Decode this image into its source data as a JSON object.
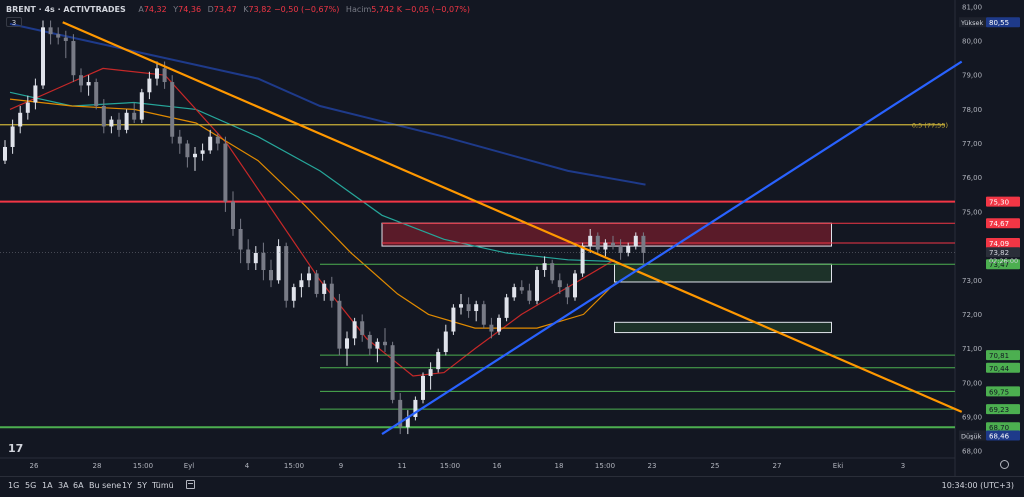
{
  "header": {
    "symbol": "BRENT · 4s · ACTIVTRADES",
    "o_label": "A",
    "o_value": "74,32",
    "h_label": "Y",
    "h_value": "74,36",
    "l_label": "D",
    "l_value": "73,47",
    "c_label": "K",
    "c_value": "73,82",
    "change": "−0,50 (−0,67%)",
    "vol_label": "Hacim",
    "vol_value": "5,742 K",
    "vol_change": "−0,05 (−0,07%)",
    "indicator_count": "3"
  },
  "bottom_bar": {
    "timeframes": [
      "1G",
      "5G",
      "1A",
      "3A",
      "6A",
      "Bu sene",
      "1Y",
      "5Y",
      "Tümü"
    ],
    "clock": "10:34:00 (UTC+3)"
  },
  "colors": {
    "background": "#131722",
    "up": "#e0e3eb",
    "down": "#787b86",
    "red_line": "#f23645",
    "green_line": "#4caf50",
    "orange": "#ff9800",
    "blue": "#2962ff",
    "gold": "#c9b038",
    "navy_ma": "#1e3a8a"
  },
  "chart_data": {
    "type": "candlestick",
    "title": "BRENT · 4s · ACTIVTRADES",
    "ylim": [
      67.8,
      81.2
    ],
    "y_ticks": [
      "81,00",
      "80,00",
      "79,00",
      "78,00",
      "77,00",
      "76,00",
      "75,00",
      "73,00",
      "72,00",
      "71,00",
      "70,00",
      "69,00",
      "68,00"
    ],
    "x_ticks": [
      "26",
      "28",
      "15:00",
      "Eyl",
      "4",
      "15:00",
      "9",
      "11",
      "15:00",
      "16",
      "18",
      "15:00",
      "23",
      "25",
      "27",
      "Eki",
      "3",
      "7"
    ],
    "candles": [
      [
        76.5,
        77.1,
        76.4,
        76.9
      ],
      [
        76.9,
        77.7,
        76.7,
        77.5
      ],
      [
        77.5,
        78.1,
        77.3,
        77.9
      ],
      [
        77.9,
        78.4,
        77.7,
        78.2
      ],
      [
        78.2,
        78.9,
        78.0,
        78.7
      ],
      [
        78.7,
        80.6,
        78.6,
        80.4
      ],
      [
        80.4,
        80.6,
        79.9,
        80.2
      ],
      [
        80.2,
        80.4,
        79.9,
        80.1
      ],
      [
        80.1,
        80.3,
        79.5,
        80.0
      ],
      [
        80.0,
        80.2,
        78.8,
        79.0
      ],
      [
        79.0,
        79.2,
        78.5,
        78.7
      ],
      [
        78.7,
        79.0,
        78.4,
        78.8
      ],
      [
        78.8,
        78.9,
        78.0,
        78.1
      ],
      [
        78.1,
        78.3,
        77.3,
        77.5
      ],
      [
        77.5,
        77.8,
        77.3,
        77.7
      ],
      [
        77.7,
        77.9,
        77.2,
        77.4
      ],
      [
        77.4,
        78.0,
        77.3,
        77.9
      ],
      [
        77.9,
        78.2,
        77.6,
        77.7
      ],
      [
        77.7,
        78.6,
        77.6,
        78.5
      ],
      [
        78.5,
        79.1,
        78.3,
        78.9
      ],
      [
        78.9,
        79.4,
        78.7,
        79.2
      ],
      [
        79.2,
        79.4,
        78.6,
        78.8
      ],
      [
        78.8,
        79.0,
        77.0,
        77.2
      ],
      [
        77.2,
        77.4,
        76.7,
        77.0
      ],
      [
        77.0,
        77.1,
        76.3,
        76.6
      ],
      [
        76.6,
        76.9,
        76.2,
        76.7
      ],
      [
        76.7,
        77.0,
        76.5,
        76.8
      ],
      [
        76.8,
        77.4,
        76.7,
        77.2
      ],
      [
        77.2,
        77.3,
        76.8,
        77.0
      ],
      [
        77.0,
        77.2,
        75.0,
        75.3
      ],
      [
        75.3,
        75.6,
        74.3,
        74.5
      ],
      [
        74.5,
        74.8,
        73.5,
        73.9
      ],
      [
        73.9,
        74.2,
        73.3,
        73.5
      ],
      [
        73.5,
        74.0,
        73.3,
        73.8
      ],
      [
        73.8,
        74.1,
        73.0,
        73.3
      ],
      [
        73.3,
        73.6,
        72.8,
        73.0
      ],
      [
        73.0,
        74.2,
        72.9,
        74.0
      ],
      [
        74.0,
        74.1,
        72.2,
        72.4
      ],
      [
        72.4,
        72.9,
        72.2,
        72.8
      ],
      [
        72.8,
        73.2,
        72.5,
        73.0
      ],
      [
        73.0,
        73.4,
        72.8,
        73.2
      ],
      [
        73.2,
        73.3,
        72.5,
        72.6
      ],
      [
        72.6,
        73.0,
        72.4,
        72.9
      ],
      [
        72.9,
        73.1,
        72.2,
        72.4
      ],
      [
        72.4,
        72.6,
        70.8,
        71.0
      ],
      [
        71.0,
        71.5,
        70.5,
        71.3
      ],
      [
        71.3,
        71.9,
        71.1,
        71.8
      ],
      [
        71.8,
        72.0,
        71.2,
        71.4
      ],
      [
        71.4,
        71.5,
        70.8,
        71.0
      ],
      [
        71.0,
        71.3,
        70.6,
        71.2
      ],
      [
        71.2,
        71.6,
        70.9,
        71.1
      ],
      [
        71.1,
        71.2,
        69.4,
        69.5
      ],
      [
        69.5,
        69.7,
        68.5,
        68.7
      ],
      [
        68.7,
        69.2,
        68.5,
        69.0
      ],
      [
        69.0,
        69.6,
        68.9,
        69.5
      ],
      [
        69.5,
        70.3,
        69.4,
        70.2
      ],
      [
        70.2,
        70.6,
        69.8,
        70.4
      ],
      [
        70.4,
        71.0,
        70.3,
        70.9
      ],
      [
        70.9,
        71.7,
        70.8,
        71.5
      ],
      [
        71.5,
        72.3,
        71.4,
        72.2
      ],
      [
        72.2,
        72.6,
        72.0,
        72.3
      ],
      [
        72.3,
        72.5,
        71.9,
        72.1
      ],
      [
        72.1,
        72.4,
        71.8,
        72.3
      ],
      [
        72.3,
        72.4,
        71.6,
        71.7
      ],
      [
        71.7,
        71.9,
        71.3,
        71.5
      ],
      [
        71.5,
        72.0,
        71.4,
        71.9
      ],
      [
        71.9,
        72.6,
        71.8,
        72.5
      ],
      [
        72.5,
        72.9,
        72.4,
        72.8
      ],
      [
        72.8,
        73.0,
        72.6,
        72.7
      ],
      [
        72.7,
        72.9,
        72.3,
        72.4
      ],
      [
        72.4,
        73.4,
        72.3,
        73.3
      ],
      [
        73.3,
        73.7,
        73.1,
        73.5
      ],
      [
        73.5,
        73.6,
        72.9,
        73.0
      ],
      [
        73.0,
        73.2,
        72.6,
        72.8
      ],
      [
        72.8,
        72.9,
        72.3,
        72.5
      ],
      [
        72.5,
        73.3,
        72.4,
        73.2
      ],
      [
        73.2,
        74.1,
        73.1,
        74.0
      ],
      [
        74.0,
        74.5,
        73.8,
        74.3
      ],
      [
        74.3,
        74.4,
        73.8,
        73.9
      ],
      [
        73.9,
        74.2,
        73.7,
        74.1
      ],
      [
        74.1,
        74.3,
        73.9,
        74.0
      ],
      [
        74.0,
        74.2,
        73.6,
        73.8
      ],
      [
        73.8,
        74.1,
        73.7,
        74.0
      ],
      [
        74.0,
        74.4,
        73.9,
        74.3
      ],
      [
        74.3,
        74.4,
        73.5,
        73.8
      ]
    ],
    "horizontal_levels": [
      {
        "label": "75,30",
        "value": 75.3,
        "color": "red"
      },
      {
        "label": "74,67",
        "value": 74.67,
        "color": "red"
      },
      {
        "label": "74,09",
        "value": 74.09,
        "color": "red"
      },
      {
        "label": "73,47",
        "value": 73.47,
        "color": "green"
      },
      {
        "label": "70,81",
        "value": 70.81,
        "color": "green"
      },
      {
        "label": "70,44",
        "value": 70.44,
        "color": "green"
      },
      {
        "label": "69,75",
        "value": 69.75,
        "color": "green"
      },
      {
        "label": "69,23",
        "value": 69.23,
        "color": "green"
      },
      {
        "label": "68,70",
        "value": 68.7,
        "color": "green"
      }
    ],
    "fib_level": {
      "label": "0,5 (77,55)",
      "value": 77.55
    },
    "high_marker": {
      "label": "Yüksek",
      "value_label": "80,55",
      "value": 80.55
    },
    "low_marker": {
      "label": "Düşük",
      "value_label": "68,46",
      "value": 68.46
    },
    "current_price": {
      "label": "73,82",
      "countdown": "02:26:00",
      "value": 73.82
    },
    "zones": [
      {
        "kind": "resistance",
        "from_x": 12.0,
        "to_x": 26.5,
        "top": 74.67,
        "bottom": 74.0
      },
      {
        "kind": "support",
        "from_x": 19.5,
        "to_x": 26.5,
        "top": 73.47,
        "bottom": 72.95
      },
      {
        "kind": "support",
        "from_x": 19.5,
        "to_x": 26.5,
        "top": 71.77,
        "bottom": 71.47
      }
    ],
    "trendlines": [
      {
        "kind": "downtrend",
        "x0": 1.7,
        "y0": 80.55,
        "x1": 30.7,
        "y1": 69.15
      },
      {
        "kind": "uptrend",
        "x0": 12.0,
        "y0": 68.5,
        "x1": 30.7,
        "y1": 79.4
      }
    ],
    "moving_averages": [
      {
        "color": "navy",
        "points": [
          [
            0,
            80.5
          ],
          [
            3,
            79.9
          ],
          [
            6,
            79.3
          ],
          [
            8,
            78.9
          ],
          [
            10,
            78.1
          ],
          [
            14,
            77.2
          ],
          [
            18,
            76.2
          ],
          [
            20.5,
            75.8
          ]
        ]
      },
      {
        "color": "teal",
        "points": [
          [
            0,
            78.5
          ],
          [
            2,
            78.1
          ],
          [
            4,
            78.2
          ],
          [
            6,
            78.0
          ],
          [
            8,
            77.2
          ],
          [
            10,
            76.2
          ],
          [
            12,
            74.9
          ],
          [
            14,
            74.2
          ],
          [
            16,
            73.8
          ],
          [
            18,
            73.6
          ],
          [
            19.5,
            73.55
          ]
        ]
      },
      {
        "color": "red",
        "points": [
          [
            0,
            78.0
          ],
          [
            2,
            78.8
          ],
          [
            3,
            79.2
          ],
          [
            5,
            79.0
          ],
          [
            7,
            77.0
          ],
          [
            8.5,
            75.0
          ],
          [
            10,
            73.0
          ],
          [
            11.5,
            71.3
          ],
          [
            13,
            70.2
          ],
          [
            14,
            70.3
          ],
          [
            15,
            71.0
          ],
          [
            16.5,
            72.0
          ],
          [
            18,
            72.8
          ],
          [
            19.5,
            73.6
          ]
        ]
      },
      {
        "color": "orange",
        "points": [
          [
            0,
            78.3
          ],
          [
            2,
            78.1
          ],
          [
            4,
            78.0
          ],
          [
            6,
            77.6
          ],
          [
            8,
            76.5
          ],
          [
            9.5,
            75.2
          ],
          [
            11,
            73.8
          ],
          [
            12.5,
            72.6
          ],
          [
            13.5,
            72.0
          ],
          [
            15,
            71.6
          ],
          [
            17,
            71.6
          ],
          [
            18.5,
            72.0
          ],
          [
            19.5,
            72.9
          ]
        ]
      }
    ]
  }
}
